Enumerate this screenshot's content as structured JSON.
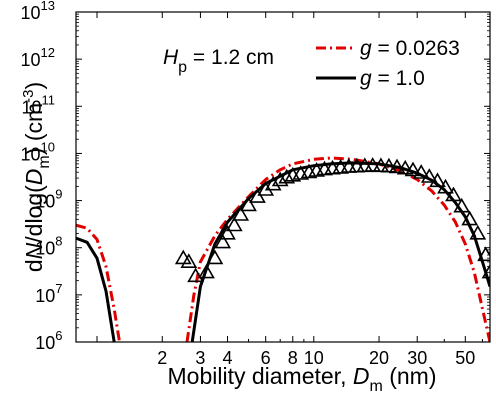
{
  "chart_data": {
    "type": "line",
    "xscale": "log",
    "yscale": "log",
    "xlim": [
      0.8,
      65
    ],
    "ylim": [
      1000000.0,
      10000000000000.0
    ],
    "xlabel": {
      "prefix": "Mobility diameter, ",
      "var": "D",
      "sub": "m",
      "suffix": " (nm)"
    },
    "ylabel": {
      "prefix": "d",
      "var": "N",
      "mid": "/dlog(",
      "var2": "D",
      "sub": "m",
      "suffix": ") (cm",
      "sup": "-3",
      "close": ")"
    },
    "x_ticks": [
      {
        "v": 1,
        "label": ""
      },
      {
        "v": 2,
        "label": "2"
      },
      {
        "v": 3,
        "label": "3"
      },
      {
        "v": 4,
        "label": "4"
      },
      {
        "v": 6,
        "label": "6"
      },
      {
        "v": 8,
        "label": "8"
      },
      {
        "v": 10,
        "label": "10"
      },
      {
        "v": 20,
        "label": "20"
      },
      {
        "v": 30,
        "label": "30"
      },
      {
        "v": 50,
        "label": "50"
      }
    ],
    "y_ticks": [
      {
        "v": 1000000.0,
        "exp": "6"
      },
      {
        "v": 10000000.0,
        "exp": "7"
      },
      {
        "v": 100000000.0,
        "exp": "8"
      },
      {
        "v": 1000000000.0,
        "exp": "9"
      },
      {
        "v": 10000000000.0,
        "exp": "10"
      },
      {
        "v": 100000000000.0,
        "exp": "11"
      },
      {
        "v": 1000000000000.0,
        "exp": "12"
      },
      {
        "v": 10000000000000.0,
        "exp": "13"
      }
    ],
    "annotation": {
      "var": "H",
      "sub": "p",
      "text": " = 1.2 cm"
    },
    "series": [
      {
        "name_var": "g",
        "name_value": " = 0.0263",
        "color": "#e00000",
        "dash": "dashdot",
        "segments": [
          {
            "x": [
              0.8,
              0.9,
              1.0,
              1.1,
              1.2,
              1.27
            ],
            "y": [
              300000000.0,
              260000000.0,
              150000000.0,
              40000000.0,
              5000000.0,
              1000000.0
            ]
          },
          {
            "x": [
              2.6,
              2.8,
              3.0,
              3.5,
              4,
              5,
              6,
              7,
              8,
              10,
              12,
              15,
              20,
              25,
              30,
              35,
              40,
              45,
              50,
              55,
              60,
              65
            ],
            "y": [
              1000000.0,
              10000000.0,
              50000000.0,
              180000000.0,
              400000000.0,
              1200000000.0,
              2800000000.0,
              4500000000.0,
              6000000000.0,
              7500000000.0,
              8000000000.0,
              7500000000.0,
              6000000000.0,
              4300000000.0,
              2800000000.0,
              1600000000.0,
              800000000.0,
              350000000.0,
              120000000.0,
              30000000.0,
              5000000.0,
              1000000.0
            ]
          }
        ]
      },
      {
        "name_var": "g",
        "name_value": " = 1.0",
        "color": "#000000",
        "dash": "solid",
        "segments": [
          {
            "x": [
              0.8,
              0.9,
              1.0,
              1.1,
              1.2
            ],
            "y": [
              160000000.0,
              130000000.0,
              60000000.0,
              12000000.0,
              1000000.0
            ]
          },
          {
            "x": [
              2.75,
              3.0,
              3.5,
              4,
              5,
              6,
              8,
              10,
              12,
              15,
              20,
              25,
              30,
              35,
              40,
              45,
              50,
              55,
              60,
              65
            ],
            "y": [
              1000000.0,
              15000000.0,
              120000000.0,
              350000000.0,
              1100000000.0,
              2300000000.0,
              4500000000.0,
              5500000000.0,
              6000000000.0,
              6300000000.0,
              6000000000.0,
              5000000000.0,
              3800000000.0,
              2700000000.0,
              1700000000.0,
              900000000.0,
              450000000.0,
              180000000.0,
              50000000.0,
              15000000.0
            ]
          }
        ]
      }
    ],
    "measured": {
      "marker": "triangle-open",
      "x": [
        2.5,
        2.65,
        2.85,
        3.2,
        3.5,
        3.8,
        4.0,
        4.3,
        4.6,
        5.0,
        5.5,
        6.0,
        6.5,
        7.0,
        7.5,
        8.0,
        8.7,
        9.5,
        10.3,
        11.2,
        12.2,
        13.3,
        14.5,
        15.8,
        17.2,
        18.7,
        20.4,
        22.2,
        24.2,
        26.4,
        28.7,
        31.3,
        34.1,
        37.2,
        40.5,
        44.1,
        48.1,
        52.4,
        57.1,
        62.0,
        65.0
      ],
      "y": [
        60000000.0,
        50000000.0,
        25000000.0,
        30000000.0,
        60000000.0,
        130000000.0,
        200000000.0,
        300000000.0,
        500000000.0,
        800000000.0,
        1200000000.0,
        1700000000.0,
        2200000000.0,
        2700000000.0,
        3100000000.0,
        3400000000.0,
        3700000000.0,
        4000000000.0,
        4300000000.0,
        4600000000.0,
        4800000000.0,
        5000000000.0,
        5200000000.0,
        5300000000.0,
        5400000000.0,
        5500000000.0,
        5400000000.0,
        5300000000.0,
        5100000000.0,
        4800000000.0,
        4400000000.0,
        3900000000.0,
        3200000000.0,
        2600000000.0,
        1900000000.0,
        1300000000.0,
        750000000.0,
        400000000.0,
        200000000.0,
        70000000.0,
        30000000.0
      ]
    }
  }
}
